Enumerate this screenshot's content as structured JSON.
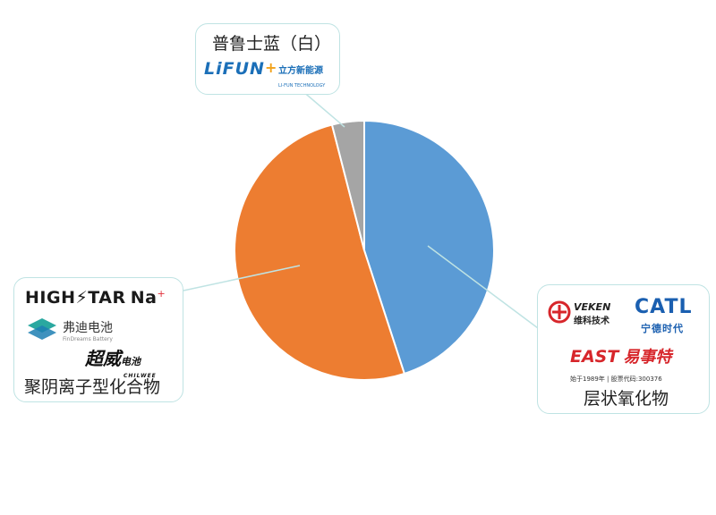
{
  "chart_data": {
    "type": "pie",
    "start_angle_deg": 0,
    "direction": "clockwise",
    "slices": [
      {
        "label": "层状氧化物",
        "value": 45,
        "color": "#5b9bd5"
      },
      {
        "label": "聚阴离子型化合物",
        "value": 51,
        "color": "#ed7d31"
      },
      {
        "label": "普鲁士蓝（白）",
        "value": 4,
        "color": "#a5a5a5"
      }
    ]
  },
  "callouts": {
    "prussian": {
      "label": "普鲁士蓝（白）",
      "logo_lifun": {
        "main": "LiFUN",
        "plus": "+",
        "cn": "立方新能源",
        "en": "LI-FUN TECHNOLOGY"
      }
    },
    "polyanion": {
      "label": "聚阴离子型化合物",
      "logo_hishstar": {
        "text": "HIGH⚡TAR",
        "na": "Na",
        "plus": "+"
      },
      "logo_findreams": {
        "cn": "弗迪电池",
        "en": "FinDreams Battery"
      },
      "logo_chilwee": {
        "cn": "超威",
        "small": "电池",
        "en": "CHILWEE"
      }
    },
    "layered": {
      "label": "层状氧化物",
      "logo_veken": {
        "en": "VEKEN",
        "cn": "维科技术"
      },
      "logo_catl": {
        "en": "CATL",
        "cn": "宁德时代"
      },
      "logo_east": {
        "en": "EAST",
        "cn": "易事特",
        "sub": "始于1989年 | 股票代码:300376"
      }
    }
  },
  "colors": {
    "callout_border": "#bfe3e3",
    "leader_line": "#bfe3e3"
  }
}
